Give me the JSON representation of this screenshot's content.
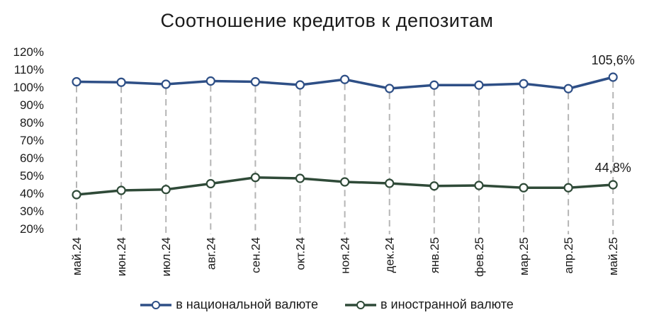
{
  "chart_data": {
    "type": "line",
    "title": "Соотношение кредитов к депозитам",
    "categories": [
      "май.24",
      "июн.24",
      "июл.24",
      "авг.24",
      "сен.24",
      "окт.24",
      "ноя.24",
      "дек.24",
      "янв.25",
      "фев.25",
      "мар.25",
      "апр.25",
      "май.25"
    ],
    "y_ticks": [
      "20%",
      "30%",
      "40%",
      "50%",
      "60%",
      "70%",
      "80%",
      "90%",
      "100%",
      "110%",
      "120%"
    ],
    "ylim": [
      20,
      120
    ],
    "grid": false,
    "legend_position": "bottom",
    "series": [
      {
        "name": "в национальной валюте",
        "color": "#2e4f86",
        "values": [
          103,
          102.7,
          101.6,
          103.4,
          103,
          101.2,
          104.3,
          99.2,
          101.1,
          101.1,
          101.9,
          99.1,
          105.6
        ]
      },
      {
        "name": "в иностранной валюте",
        "color": "#2f4a38",
        "values": [
          39.2,
          41.6,
          42.1,
          45.4,
          48.9,
          48.4,
          46.4,
          45.6,
          44.1,
          44.4,
          43.1,
          43.1,
          44.8
        ]
      }
    ],
    "annotations": [
      {
        "series": 0,
        "index": 12,
        "text": "105,6%"
      },
      {
        "series": 1,
        "index": 12,
        "text": "44,8%"
      }
    ]
  }
}
